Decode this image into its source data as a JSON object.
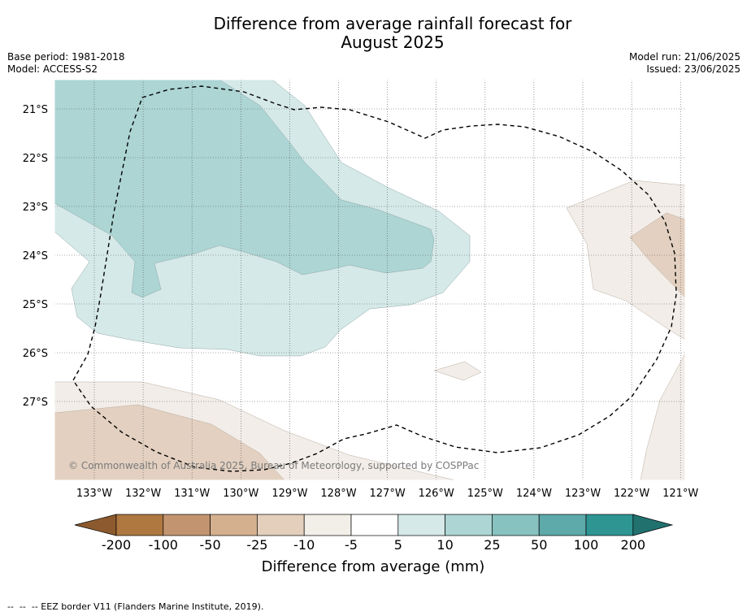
{
  "title_line1": "Difference from average rainfall forecast for",
  "title_line2": "August 2025",
  "base_period": "Base period: 1981-2018",
  "model": "Model: ACCESS-S2",
  "model_run": "Model run: 21/06/2025",
  "issued": "Issued: 23/06/2025",
  "map": {
    "lat_labels": [
      "21°S",
      "22°S",
      "23°S",
      "24°S",
      "25°S",
      "26°S",
      "27°S"
    ],
    "lon_labels": [
      "133°W",
      "132°W",
      "131°W",
      "130°W",
      "129°W",
      "128°W",
      "127°W",
      "126°W",
      "125°W",
      "124°W",
      "123°W",
      "122°W",
      "121°W"
    ],
    "copyright": "© Commonwealth of Australia 2025, Bureau of Meteorology, supported by COSPPac",
    "eez_label": "--  --  -- EEZ border V11 (Flanders Marine Institute, 2019).",
    "zones": [
      {
        "name": "zone-light-teal",
        "category": "5 to 10",
        "color": "#d5e9e8"
      },
      {
        "name": "zone-mid-teal",
        "category": "10 to 25",
        "color": "#acd5d4"
      },
      {
        "name": "zone-light-brown",
        "category": "-10 to -5",
        "color": "#f2ede8"
      },
      {
        "name": "zone-tan",
        "category": "-25 to -10",
        "color": "#e3d0c0"
      }
    ]
  },
  "colorbar": {
    "label": "Difference from average (mm)",
    "ticks": [
      "-200",
      "-100",
      "-50",
      "-25",
      "-10",
      "-5",
      "5",
      "10",
      "25",
      "50",
      "100",
      "200"
    ],
    "colors": [
      "#8c5a2e",
      "#ae7840",
      "#c29570",
      "#d4b08f",
      "#e3cfbc",
      "#f2eee8",
      "#ffffff",
      "#d4e9e8",
      "#acd5d4",
      "#88c2c0",
      "#5ea9aa",
      "#2e9593",
      "#21716f"
    ]
  }
}
